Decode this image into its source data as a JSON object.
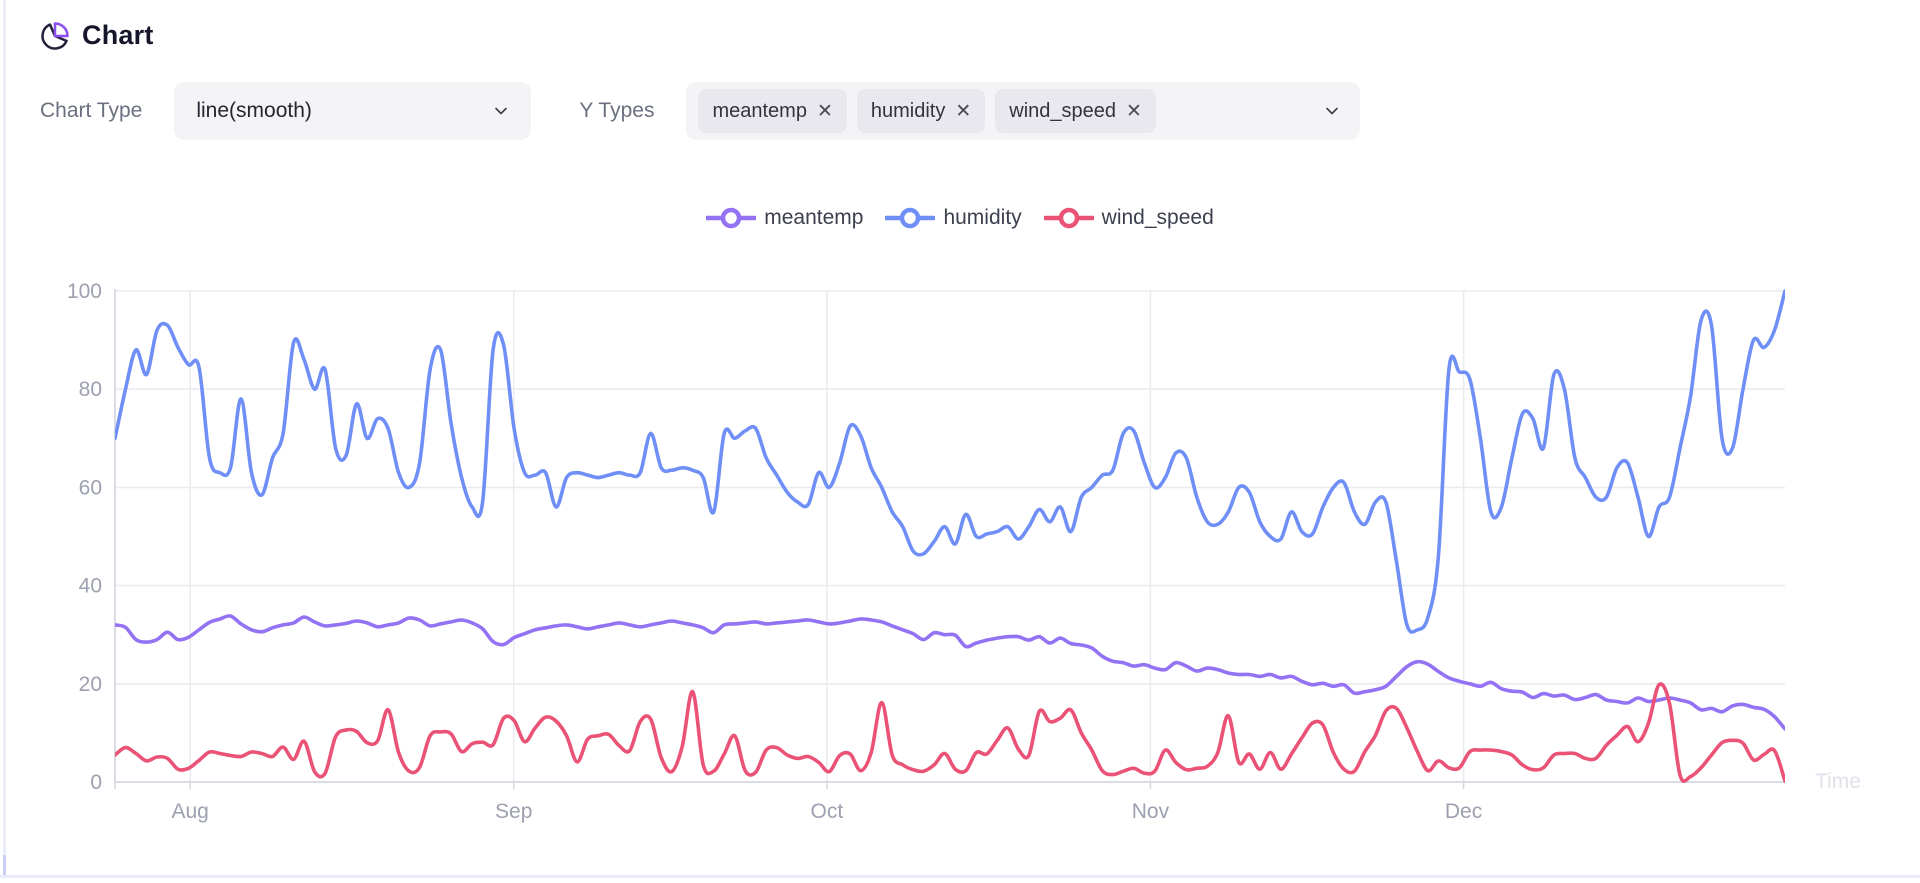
{
  "header": {
    "title": "Chart",
    "icon": "pie-chart-icon"
  },
  "controls": {
    "chart_type": {
      "label": "Chart Type",
      "value": "line(smooth)"
    },
    "y_types": {
      "label": "Y Types",
      "tags": [
        "meantemp",
        "humidity",
        "wind_speed"
      ],
      "remove_glyph": "✕"
    }
  },
  "legend": {
    "items": [
      {
        "label": "meantemp",
        "color": "#9472f4"
      },
      {
        "label": "humidity",
        "color": "#6f8ff7"
      },
      {
        "label": "wind_speed",
        "color": "#ea5276"
      }
    ]
  },
  "chart_data": {
    "type": "line",
    "smooth": true,
    "title": "",
    "xlabel": "Time",
    "ylabel": "",
    "x_axis": {
      "name": "Time",
      "tick_labels": [
        "Aug",
        "Sep",
        "Oct",
        "Nov",
        "Dec"
      ],
      "tick_day_offsets": [
        7.2,
        38.2,
        68.2,
        99.2,
        129.2
      ],
      "total_days": 160
    },
    "y_axis": {
      "ticks": [
        0,
        20,
        40,
        60,
        80,
        100
      ],
      "min": 0,
      "max": 100
    },
    "grid": true,
    "legend_position": "top-center",
    "colors": {
      "grid_line": "#ebebf0",
      "axis_line": "#d6d8e0",
      "tick_label": "#9da0b0",
      "axis_name": "#e0e2ea"
    },
    "series": [
      {
        "name": "meantemp",
        "color": "#9472f4",
        "values": [
          32,
          31.5,
          29,
          28.5,
          29,
          30.5,
          29,
          29.5,
          31,
          32.5,
          33.2,
          33.8,
          32.2,
          31,
          30.6,
          31.4,
          32,
          32.4,
          33.6,
          32.6,
          31.8,
          32,
          32.3,
          32.8,
          32.4,
          31.6,
          32,
          32.4,
          33.4,
          33,
          31.8,
          32.2,
          32.6,
          33,
          32.4,
          31.2,
          28.6,
          28,
          29.4,
          30.2,
          31,
          31.4,
          31.8,
          32,
          31.6,
          31.2,
          31.6,
          32,
          32.4,
          32,
          31.6,
          32,
          32.4,
          32.8,
          32.4,
          32,
          31.4,
          30.4,
          32,
          32.2,
          32.4,
          32.6,
          32.2,
          32.4,
          32.6,
          32.8,
          33,
          32.6,
          32.2,
          32.4,
          32.8,
          33.2,
          33,
          32.6,
          31.8,
          31,
          30.2,
          29,
          30.4,
          30,
          29.9,
          27.6,
          28.3,
          28.9,
          29.3,
          29.6,
          29.6,
          28.9,
          29.6,
          28.3,
          29.3,
          28.2,
          27.9,
          27.3,
          25.6,
          24.6,
          24.3,
          23.6,
          23.9,
          23.2,
          22.9,
          24.3,
          23.6,
          22.6,
          23.2,
          22.9,
          22.2,
          21.9,
          21.9,
          21.5,
          21.9,
          21.2,
          21.5,
          20.5,
          19.8,
          20.1,
          19.5,
          19.8,
          18.1,
          18.4,
          18.8,
          19.5,
          21.5,
          23.5,
          24.5,
          24,
          22.5,
          21.2,
          20.5,
          20,
          19.5,
          20.3,
          19,
          18.5,
          18.3,
          17.2,
          18,
          17.5,
          17.7,
          16.8,
          17.2,
          17.8,
          16.7,
          16.4,
          16.1,
          17.1,
          16.4,
          16.7,
          17.1,
          16.7,
          16.1,
          14.7,
          15,
          14.3,
          15.5,
          15.8,
          15.2,
          14.8,
          13.3,
          10.8
        ]
      },
      {
        "name": "humidity",
        "color": "#6f8ff7",
        "values": [
          70,
          80,
          88,
          83,
          92,
          93,
          88.5,
          85,
          84.5,
          66,
          63,
          64,
          78,
          63,
          58.5,
          66,
          71,
          89.5,
          86,
          80,
          84,
          68,
          66.5,
          77,
          70,
          74,
          72,
          63,
          60,
          65,
          84,
          88,
          73,
          62,
          56,
          57,
          88,
          89,
          72,
          63,
          62.5,
          63,
          56,
          62,
          63,
          62.5,
          62,
          62.5,
          63,
          62.5,
          63,
          71,
          64,
          63.5,
          64,
          63.5,
          62,
          55,
          71,
          70,
          71.5,
          72,
          66,
          62.5,
          59,
          57,
          56.5,
          63,
          60,
          65,
          72.5,
          70.5,
          64,
          60,
          55,
          52,
          47,
          46.5,
          49,
          52,
          48.5,
          54.5,
          50,
          50.5,
          51,
          52,
          49.5,
          52,
          55.5,
          53,
          56,
          51,
          58,
          60,
          62.5,
          63.5,
          71,
          71.5,
          65,
          60,
          62,
          67,
          66,
          58,
          53,
          52.5,
          55,
          60,
          59,
          53,
          50,
          49.5,
          55,
          51,
          50.5,
          56,
          60,
          61,
          55,
          52.5,
          57,
          57,
          45,
          32,
          31,
          33.5,
          46,
          84,
          83.5,
          82,
          70,
          55,
          56,
          66,
          75,
          74,
          68,
          83,
          80,
          66,
          62,
          58,
          58,
          64,
          65,
          58,
          50,
          56,
          58,
          68,
          78.5,
          94,
          93,
          70,
          68,
          80,
          90,
          88.5,
          92,
          100
        ]
      },
      {
        "name": "wind_speed",
        "color": "#ea5276",
        "values": [
          5.5,
          7,
          5.8,
          4.3,
          5.1,
          4.8,
          2.6,
          2.8,
          4.4,
          6.1,
          5.8,
          5.4,
          5.2,
          6.1,
          5.8,
          5.2,
          7.1,
          4.6,
          8.3,
          2.1,
          1.8,
          9.2,
          10.6,
          10.3,
          8,
          8.4,
          14.7,
          6,
          2.2,
          3,
          9.4,
          10.2,
          9.8,
          6.2,
          7.8,
          8.1,
          7.6,
          13,
          12.5,
          8.2,
          11,
          13.2,
          12.4,
          9.4,
          4.1,
          8.7,
          9.4,
          9.7,
          7.4,
          6.4,
          12.3,
          12.8,
          5,
          2.1,
          7.2,
          18.4,
          3.5,
          2.2,
          5.7,
          9.4,
          2.3,
          2,
          6.5,
          7,
          5.5,
          4.8,
          5.2,
          4,
          2.1,
          5.4,
          5.7,
          2.3,
          6,
          16.2,
          5.5,
          3.5,
          2.5,
          2.2,
          3.5,
          5.8,
          2.6,
          2.3,
          6,
          5.7,
          8.5,
          11,
          6.7,
          5.4,
          14.4,
          12.3,
          13,
          14.7,
          10,
          6.5,
          2.3,
          1.5,
          2.2,
          2.8,
          1.8,
          2.2,
          6.5,
          4,
          2.5,
          2.8,
          3.2,
          6,
          13.5,
          4,
          5.7,
          2.6,
          6,
          2.6,
          5.7,
          9,
          12,
          11.6,
          6,
          2.6,
          2.2,
          6.2,
          9.5,
          14.5,
          15,
          11,
          6.2,
          2.3,
          4.3,
          2.9,
          2.9,
          6.2,
          6.5,
          6.5,
          6.2,
          5.5,
          3.5,
          2.5,
          2.9,
          5.5,
          5.8,
          5.8,
          4.8,
          4.8,
          7.5,
          9.5,
          11.3,
          8.2,
          12,
          19.8,
          16,
          1.4,
          1.1,
          2.9,
          5.5,
          8,
          8.5,
          7.9,
          4.5,
          5.6,
          6.4,
          0.2
        ]
      }
    ]
  }
}
